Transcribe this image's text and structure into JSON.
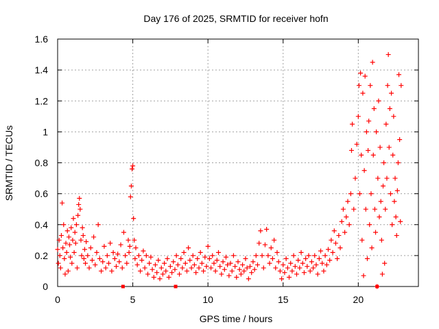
{
  "chart_data": {
    "type": "scatter",
    "title": "Day 176 of 2025, SRMTID for receiver hofn",
    "xlabel": "GPS time / hours",
    "ylabel": "SRMTID / TECUs",
    "xlim": [
      0,
      24
    ],
    "ylim": [
      0,
      1.6
    ],
    "x_ticks": [
      0,
      5,
      10,
      15,
      20
    ],
    "x_tick_labels": [
      "0",
      "5",
      "10",
      "15",
      "20"
    ],
    "y_ticks": [
      0,
      0.2,
      0.4,
      0.6,
      0.8,
      1.0,
      1.2,
      1.4,
      1.6
    ],
    "y_tick_labels": [
      "0",
      "0.2",
      "0.4",
      "0.6",
      "0.8",
      "1",
      "1.2",
      "1.4",
      "1.6"
    ],
    "grid": true,
    "marker": "+",
    "series": [
      {
        "name": "SRMTID",
        "color": "#ff0000",
        "points": [
          [
            0.0,
            0.24
          ],
          [
            0.05,
            0.15
          ],
          [
            0.1,
            0.3
          ],
          [
            0.15,
            0.2
          ],
          [
            0.2,
            0.12
          ],
          [
            0.25,
            0.33
          ],
          [
            0.3,
            0.54
          ],
          [
            0.35,
            0.25
          ],
          [
            0.4,
            0.4
          ],
          [
            0.45,
            0.18
          ],
          [
            0.5,
            0.08
          ],
          [
            0.55,
            0.28
          ],
          [
            0.6,
            0.22
          ],
          [
            0.65,
            0.36
          ],
          [
            0.7,
            0.1
          ],
          [
            0.75,
            0.32
          ],
          [
            0.8,
            0.27
          ],
          [
            0.85,
            0.19
          ],
          [
            0.9,
            0.38
          ],
          [
            0.95,
            0.15
          ],
          [
            1.0,
            0.3
          ],
          [
            1.05,
            0.44
          ],
          [
            1.1,
            0.22
          ],
          [
            1.15,
            0.35
          ],
          [
            1.2,
            0.28
          ],
          [
            1.25,
            0.4
          ],
          [
            1.3,
            0.12
          ],
          [
            1.35,
            0.46
          ],
          [
            1.4,
            0.53
          ],
          [
            1.45,
            0.57
          ],
          [
            1.5,
            0.5
          ],
          [
            1.55,
            0.3
          ],
          [
            1.6,
            0.2
          ],
          [
            1.65,
            0.38
          ],
          [
            1.7,
            0.33
          ],
          [
            1.75,
            0.18
          ],
          [
            1.8,
            0.24
          ],
          [
            1.85,
            0.15
          ],
          [
            1.9,
            0.29
          ],
          [
            2.0,
            0.2
          ],
          [
            2.1,
            0.12
          ],
          [
            2.2,
            0.25
          ],
          [
            2.3,
            0.17
          ],
          [
            2.4,
            0.32
          ],
          [
            2.5,
            0.14
          ],
          [
            2.6,
            0.22
          ],
          [
            2.7,
            0.4
          ],
          [
            2.8,
            0.18
          ],
          [
            2.9,
            0.1
          ],
          [
            3.0,
            0.16
          ],
          [
            3.1,
            0.26
          ],
          [
            3.2,
            0.12
          ],
          [
            3.3,
            0.2
          ],
          [
            3.4,
            0.15
          ],
          [
            3.5,
            0.28
          ],
          [
            3.6,
            0.1
          ],
          [
            3.7,
            0.22
          ],
          [
            3.8,
            0.18
          ],
          [
            3.9,
            0.13
          ],
          [
            4.0,
            0.21
          ],
          [
            4.1,
            0.16
          ],
          [
            4.2,
            0.27
          ],
          [
            4.3,
            0.12
          ],
          [
            4.4,
            0.35
          ],
          [
            4.5,
            0.2
          ],
          [
            4.6,
            0.15
          ],
          [
            4.7,
            0.3
          ],
          [
            4.75,
            0.22
          ],
          [
            4.8,
            0.26
          ],
          [
            4.85,
            0.58
          ],
          [
            4.9,
            0.65
          ],
          [
            4.95,
            0.76
          ],
          [
            5.0,
            0.78
          ],
          [
            5.05,
            0.44
          ],
          [
            5.1,
            0.3
          ],
          [
            5.15,
            0.18
          ],
          [
            5.2,
            0.25
          ],
          [
            5.3,
            0.14
          ],
          [
            5.4,
            0.2
          ],
          [
            5.5,
            0.1
          ],
          [
            5.6,
            0.17
          ],
          [
            5.7,
            0.23
          ],
          [
            5.8,
            0.12
          ],
          [
            5.9,
            0.2
          ],
          [
            6.0,
            0.08
          ],
          [
            6.1,
            0.15
          ],
          [
            6.2,
            0.19
          ],
          [
            6.3,
            0.11
          ],
          [
            6.4,
            0.06
          ],
          [
            6.5,
            0.14
          ],
          [
            6.6,
            0.09
          ],
          [
            6.7,
            0.17
          ],
          [
            6.8,
            0.05
          ],
          [
            6.9,
            0.12
          ],
          [
            7.0,
            0.08
          ],
          [
            7.1,
            0.15
          ],
          [
            7.2,
            0.1
          ],
          [
            7.3,
            0.18
          ],
          [
            7.4,
            0.06
          ],
          [
            7.5,
            0.13
          ],
          [
            7.6,
            0.09
          ],
          [
            7.7,
            0.16
          ],
          [
            7.8,
            0.11
          ],
          [
            7.9,
            0.2
          ],
          [
            8.0,
            0.14
          ],
          [
            8.1,
            0.08
          ],
          [
            8.2,
            0.18
          ],
          [
            8.3,
            0.12
          ],
          [
            8.4,
            0.22
          ],
          [
            8.5,
            0.15
          ],
          [
            8.6,
            0.1
          ],
          [
            8.7,
            0.25
          ],
          [
            8.8,
            0.17
          ],
          [
            8.9,
            0.12
          ],
          [
            9.0,
            0.2
          ],
          [
            9.1,
            0.14
          ],
          [
            9.2,
            0.09
          ],
          [
            9.3,
            0.18
          ],
          [
            9.4,
            0.12
          ],
          [
            9.5,
            0.22
          ],
          [
            9.6,
            0.15
          ],
          [
            9.7,
            0.1
          ],
          [
            9.8,
            0.19
          ],
          [
            9.9,
            0.13
          ],
          [
            10.0,
            0.26
          ],
          [
            10.1,
            0.18
          ],
          [
            10.2,
            0.12
          ],
          [
            10.3,
            0.2
          ],
          [
            10.4,
            0.15
          ],
          [
            10.5,
            0.1
          ],
          [
            10.6,
            0.17
          ],
          [
            10.7,
            0.22
          ],
          [
            10.8,
            0.13
          ],
          [
            10.9,
            0.08
          ],
          [
            11.0,
            0.16
          ],
          [
            11.1,
            0.11
          ],
          [
            11.2,
            0.19
          ],
          [
            11.3,
            0.14
          ],
          [
            11.4,
            0.07
          ],
          [
            11.5,
            0.15
          ],
          [
            11.6,
            0.1
          ],
          [
            11.7,
            0.2
          ],
          [
            11.8,
            0.13
          ],
          [
            11.9,
            0.06
          ],
          [
            12.0,
            0.16
          ],
          [
            12.1,
            0.11
          ],
          [
            12.2,
            0.08
          ],
          [
            12.3,
            0.14
          ],
          [
            12.4,
            0.1
          ],
          [
            12.5,
            0.18
          ],
          [
            12.6,
            0.12
          ],
          [
            12.7,
            0.05
          ],
          [
            12.8,
            0.13
          ],
          [
            12.9,
            0.09
          ],
          [
            13.0,
            0.16
          ],
          [
            13.1,
            0.11
          ],
          [
            13.2,
            0.2
          ],
          [
            13.3,
            0.14
          ],
          [
            13.4,
            0.28
          ],
          [
            13.5,
            0.36
          ],
          [
            13.6,
            0.2
          ],
          [
            13.7,
            0.12
          ],
          [
            13.8,
            0.27
          ],
          [
            13.9,
            0.37
          ],
          [
            14.0,
            0.2
          ],
          [
            14.1,
            0.15
          ],
          [
            14.2,
            0.25
          ],
          [
            14.3,
            0.18
          ],
          [
            14.4,
            0.3
          ],
          [
            14.5,
            0.12
          ],
          [
            14.6,
            0.22
          ],
          [
            14.7,
            0.16
          ],
          [
            14.8,
            0.1
          ],
          [
            14.9,
            0.05
          ],
          [
            15.0,
            0.14
          ],
          [
            15.1,
            0.09
          ],
          [
            15.2,
            0.18
          ],
          [
            15.3,
            0.12
          ],
          [
            15.4,
            0.06
          ],
          [
            15.5,
            0.15
          ],
          [
            15.6,
            0.1
          ],
          [
            15.7,
            0.2
          ],
          [
            15.8,
            0.13
          ],
          [
            15.9,
            0.08
          ],
          [
            16.0,
            0.17
          ],
          [
            16.1,
            0.12
          ],
          [
            16.2,
            0.22
          ],
          [
            16.3,
            0.15
          ],
          [
            16.4,
            0.09
          ],
          [
            16.5,
            0.18
          ],
          [
            16.6,
            0.13
          ],
          [
            16.7,
            0.2
          ],
          [
            16.8,
            0.1
          ],
          [
            16.9,
            0.16
          ],
          [
            17.0,
            0.12
          ],
          [
            17.1,
            0.2
          ],
          [
            17.2,
            0.14
          ],
          [
            17.3,
            0.08
          ],
          [
            17.4,
            0.18
          ],
          [
            17.5,
            0.23
          ],
          [
            17.6,
            0.15
          ],
          [
            17.7,
            0.1
          ],
          [
            17.8,
            0.2
          ],
          [
            17.9,
            0.14
          ],
          [
            18.0,
            0.24
          ],
          [
            18.1,
            0.17
          ],
          [
            18.2,
            0.3
          ],
          [
            18.3,
            0.22
          ],
          [
            18.4,
            0.36
          ],
          [
            18.5,
            0.28
          ],
          [
            18.6,
            0.18
          ],
          [
            18.7,
            0.33
          ],
          [
            18.8,
            0.25
          ],
          [
            18.9,
            0.42
          ],
          [
            19.0,
            0.5
          ],
          [
            19.1,
            0.35
          ],
          [
            19.2,
            0.45
          ],
          [
            19.3,
            0.55
          ],
          [
            19.4,
            0.4
          ],
          [
            19.5,
            0.6
          ],
          [
            19.55,
            0.88
          ],
          [
            19.6,
            1.05
          ],
          [
            19.7,
            0.5
          ],
          [
            19.8,
            0.7
          ],
          [
            19.9,
            0.92
          ],
          [
            20.0,
            1.1
          ],
          [
            20.05,
            1.3
          ],
          [
            20.1,
            0.6
          ],
          [
            20.15,
            1.38
          ],
          [
            20.2,
            0.85
          ],
          [
            20.25,
            0.3
          ],
          [
            20.3,
            1.25
          ],
          [
            20.35,
            0.07
          ],
          [
            20.4,
            0.75
          ],
          [
            20.45,
            1.36
          ],
          [
            20.5,
            0.5
          ],
          [
            20.55,
            1.0
          ],
          [
            20.6,
            0.18
          ],
          [
            20.65,
            0.88
          ],
          [
            20.7,
            1.07
          ],
          [
            20.75,
            0.4
          ],
          [
            20.8,
            1.3
          ],
          [
            20.85,
            0.6
          ],
          [
            20.9,
            0.25
          ],
          [
            20.95,
            1.45
          ],
          [
            21.0,
            0.85
          ],
          [
            21.05,
            1.15
          ],
          [
            21.1,
            0.5
          ],
          [
            21.15,
            0.35
          ],
          [
            21.2,
            1.0
          ],
          [
            21.25,
            0.0
          ],
          [
            21.3,
            0.7
          ],
          [
            21.35,
            1.2
          ],
          [
            21.4,
            0.45
          ],
          [
            21.45,
            0.9
          ],
          [
            21.5,
            0.55
          ],
          [
            21.55,
            0.3
          ],
          [
            21.6,
            0.08
          ],
          [
            21.65,
            0.65
          ],
          [
            21.7,
            0.8
          ],
          [
            21.75,
            0.15
          ],
          [
            21.8,
            0.5
          ],
          [
            21.85,
            1.05
          ],
          [
            21.9,
            0.7
          ],
          [
            21.95,
            1.3
          ],
          [
            22.0,
            1.5
          ],
          [
            22.05,
            0.9
          ],
          [
            22.1,
            1.15
          ],
          [
            22.15,
            0.6
          ],
          [
            22.2,
            1.25
          ],
          [
            22.25,
            0.4
          ],
          [
            22.3,
            0.85
          ],
          [
            22.35,
            1.1
          ],
          [
            22.4,
            0.55
          ],
          [
            22.45,
            0.7
          ],
          [
            22.5,
            0.45
          ],
          [
            22.55,
            0.33
          ],
          [
            22.6,
            0.62
          ],
          [
            22.65,
            0.8
          ],
          [
            22.7,
            1.37
          ],
          [
            22.75,
            0.95
          ],
          [
            22.8,
            0.42
          ],
          [
            22.85,
            1.3
          ]
        ]
      }
    ],
    "bottom_markers_x": [
      4.35,
      7.85,
      21.25
    ]
  }
}
